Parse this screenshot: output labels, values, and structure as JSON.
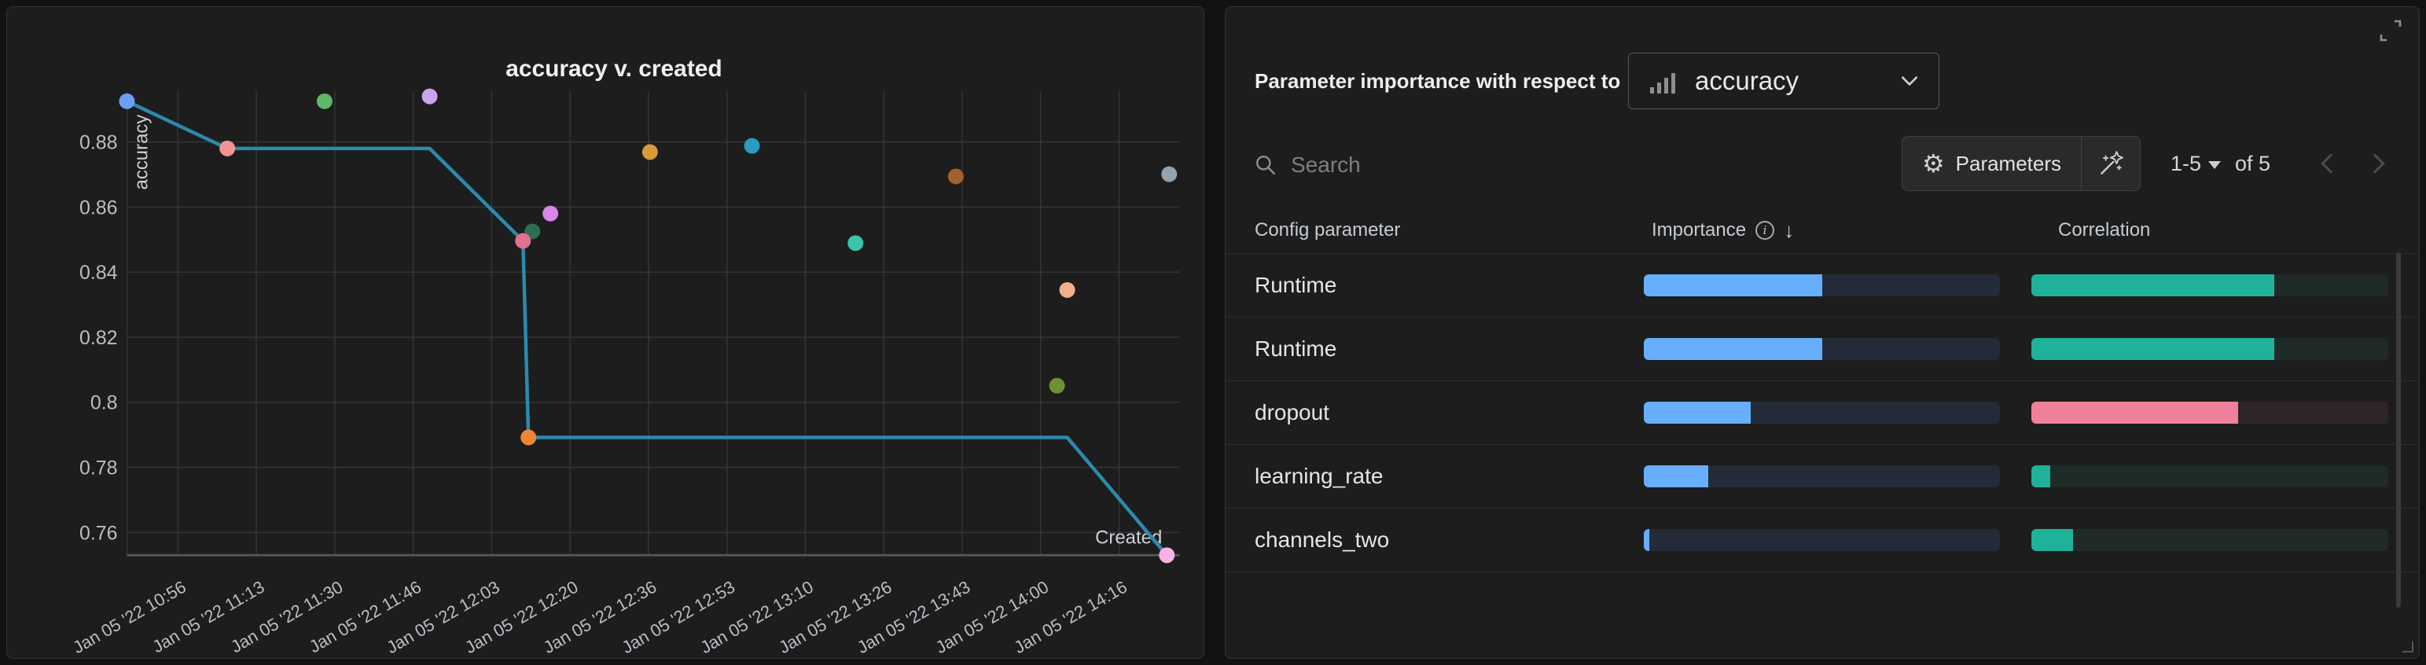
{
  "window": {
    "background": "#121212",
    "panel_background": "#1d1d1d",
    "panel_border": "#343434"
  },
  "chart_panel": {
    "chart_data": {
      "type": "scatter",
      "title": "accuracy v. created",
      "xlabel": "Created",
      "ylabel": "accuracy",
      "x_axis_note": "x values are in tick-index units; tick 0 = Jan 05 '22 10:56, 1 unit = ~16.7 minutes",
      "x_tick_labels": [
        "Jan 05 '22 10:56",
        "Jan 05 '22 11:13",
        "Jan 05 '22 11:30",
        "Jan 05 '22 11:46",
        "Jan 05 '22 12:03",
        "Jan 05 '22 12:20",
        "Jan 05 '22 12:36",
        "Jan 05 '22 12:53",
        "Jan 05 '22 13:10",
        "Jan 05 '22 13:26",
        "Jan 05 '22 13:43",
        "Jan 05 '22 14:00",
        "Jan 05 '22 14:16"
      ],
      "y_ticks": [
        0.88,
        0.86,
        0.84,
        0.82,
        0.8,
        0.78,
        0.76
      ],
      "y_tick_labels": [
        "0.88",
        "0.86",
        "0.84",
        "0.82",
        "0.8",
        "0.78",
        "0.76"
      ],
      "ylim": [
        0.752,
        0.896
      ],
      "grid": true,
      "line_color": "#2c8aad",
      "points": [
        {
          "x": -0.65,
          "y": 0.8925,
          "color": "#6d9ff2"
        },
        {
          "x": 0.63,
          "y": 0.878,
          "color": "#f29394"
        },
        {
          "x": 1.87,
          "y": 0.8925,
          "color": "#5fb768"
        },
        {
          "x": 3.21,
          "y": 0.894,
          "color": "#c9a4f5"
        },
        {
          "x": 4.75,
          "y": 0.858,
          "color": "#d886ea"
        },
        {
          "x": 4.52,
          "y": 0.8525,
          "color": "#2f6d54"
        },
        {
          "x": 4.4,
          "y": 0.8496,
          "color": "#e2718f"
        },
        {
          "x": 4.47,
          "y": 0.7892,
          "color": "#ef8633"
        },
        {
          "x": 6.02,
          "y": 0.8769,
          "color": "#d79b3b"
        },
        {
          "x": 7.32,
          "y": 0.8788,
          "color": "#2a9bc1"
        },
        {
          "x": 8.64,
          "y": 0.8489,
          "color": "#3ac3ad"
        },
        {
          "x": 9.92,
          "y": 0.8694,
          "color": "#a5602c"
        },
        {
          "x": 11.21,
          "y": 0.8051,
          "color": "#6e9135"
        },
        {
          "x": 11.34,
          "y": 0.8345,
          "color": "#f2b088"
        },
        {
          "x": 12.64,
          "y": 0.8701,
          "color": "#95a2ab"
        },
        {
          "x": 12.61,
          "y": 0.753,
          "color": "#f9b2e2"
        }
      ],
      "trend_line": [
        [
          -0.65,
          0.8925
        ],
        [
          0.63,
          0.878
        ],
        [
          3.21,
          0.878
        ],
        [
          4.4,
          0.8496
        ],
        [
          4.47,
          0.7892
        ],
        [
          11.34,
          0.7892
        ],
        [
          12.61,
          0.753
        ]
      ]
    }
  },
  "importance_panel": {
    "title": "Parameter importance with respect to",
    "metric_selector": {
      "value": "accuracy",
      "icon": "bar-chart-icon"
    },
    "search": {
      "placeholder": "Search",
      "icon": "search-icon"
    },
    "parameters_button": {
      "label": "Parameters",
      "icon": "gear-icon"
    },
    "magic_button": {
      "icon": "wand-icon"
    },
    "pagination": {
      "range": "1-5",
      "of_label": "of 5"
    },
    "table": {
      "columns": [
        "Config parameter",
        "Importance",
        "Correlation"
      ],
      "sort": {
        "column": "Importance",
        "direction": "desc"
      },
      "rows": [
        {
          "param": "Runtime",
          "importance": 0.5,
          "correlation": 0.68,
          "correlation_direction": "positive"
        },
        {
          "param": "Runtime",
          "importance": 0.5,
          "correlation": 0.68,
          "correlation_direction": "positive"
        },
        {
          "param": "dropout",
          "importance": 0.3,
          "correlation": 0.58,
          "correlation_direction": "negative"
        },
        {
          "param": "learning_rate",
          "importance": 0.18,
          "correlation": 0.053,
          "correlation_direction": "positive"
        },
        {
          "param": "channels_two",
          "importance": 0.015,
          "correlation": 0.117,
          "correlation_direction": "positive"
        }
      ],
      "colors": {
        "importance_fill": "#67aefc",
        "importance_track": "#232b38",
        "positive_fill": "#1fb29b",
        "positive_track": "#1e2b27",
        "negative_fill": "#ef8099",
        "negative_track": "#2f2429"
      }
    }
  }
}
